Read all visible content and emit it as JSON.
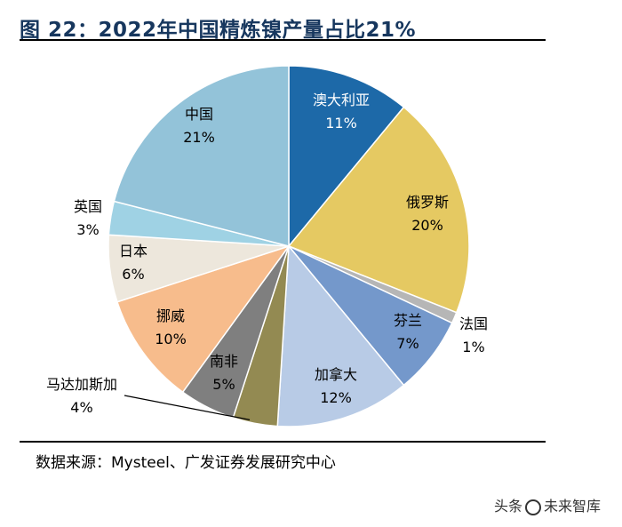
{
  "title": "图 22：2022年中国精炼镍产量占比21%",
  "source": "数据来源：Mysteel、广发证券发展研究中心",
  "watermark": {
    "left": "头条",
    "right": "未来智库"
  },
  "chart_data": {
    "type": "pie",
    "title": "2022年中国精炼镍产量占比21%",
    "start": "12 o'clock, clockwise",
    "slices": [
      {
        "label": "澳大利亚",
        "pct": "11%",
        "value": 11,
        "color": "#1d69a8",
        "text_color": "#ffffff"
      },
      {
        "label": "俄罗斯",
        "pct": "20%",
        "value": 20,
        "color": "#e5c962",
        "text_color": "#000000"
      },
      {
        "label": "法国",
        "pct": "1%",
        "value": 1,
        "color": "#b6b6b6",
        "text_color": "#000000"
      },
      {
        "label": "芬兰",
        "pct": "7%",
        "value": 7,
        "color": "#7498cb",
        "text_color": "#000000"
      },
      {
        "label": "加拿大",
        "pct": "12%",
        "value": 12,
        "color": "#b8cbe6",
        "text_color": "#000000"
      },
      {
        "label": "马达加斯加",
        "pct": "4%",
        "value": 4,
        "color": "#938a52",
        "text_color": "#000000"
      },
      {
        "label": "南非",
        "pct": "5%",
        "value": 5,
        "color": "#7f7f7f",
        "text_color": "#000000"
      },
      {
        "label": "挪威",
        "pct": "10%",
        "value": 10,
        "color": "#f7bc8c",
        "text_color": "#000000"
      },
      {
        "label": "日本",
        "pct": "6%",
        "value": 6,
        "color": "#ede7dc",
        "text_color": "#000000"
      },
      {
        "label": "英国",
        "pct": "3%",
        "value": 3,
        "color": "#9fd2e4",
        "text_color": "#000000"
      },
      {
        "label": "中国",
        "pct": "21%",
        "value": 21,
        "color": "#93c3d9",
        "text_color": "#000000"
      }
    ]
  }
}
